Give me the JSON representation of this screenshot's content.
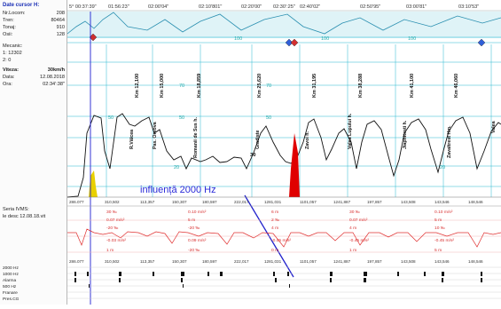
{
  "header": {
    "title": "Date cursor H:",
    "times": [
      "5° 00:37:39\"",
      "01:56:23\"",
      "02:00'04\"",
      "02:10'801\"",
      "02:20'00\"",
      "02:30':25\"",
      "02:40'02\"",
      "02:50'95\"",
      "03:00'81\"",
      "03:10'53\""
    ]
  },
  "train_info": {
    "rows": [
      {
        "label": "Nr.Locom:",
        "value": "208"
      },
      {
        "label": "Tren:",
        "value": "80464"
      },
      {
        "label": "Tonaj:",
        "value": "910"
      },
      {
        "label": "Osii:",
        "value": "128"
      },
      {
        "label": "Mecanic:",
        "value": ""
      },
      {
        "label": "1: 12302",
        "value": ""
      },
      {
        "label": "2: 0",
        "value": ""
      },
      {
        "label": "Viteza:",
        "value": "30km/h"
      },
      {
        "label": "Data:",
        "value": "12.08.2018"
      },
      {
        "label": "Ora:",
        "value": "02:34':38\""
      }
    ]
  },
  "top_scale": [
    "100",
    "100",
    "100"
  ],
  "speed_scale": [
    "100",
    "90",
    "80",
    "70",
    "60",
    "50",
    "40",
    "30",
    "20",
    "10"
  ],
  "kilometers": [
    "Km 12,100",
    "Km 15,000",
    "Km 18,859",
    "Km 25,620",
    "Km 31,195",
    "Km 38,288",
    "Km 41,100",
    "Km 46,060"
  ],
  "stations": [
    "R.Vâlcea",
    "Pas. Orsova",
    "Romanii de Sus h.",
    "Gradiste",
    "Zavoi h.",
    "Valea Lupului h.",
    "Jiaphitesti h.",
    "Zavaltrest Hm.",
    "Valea"
  ],
  "distance_axis": [
    "286.077",
    "310,502",
    "113,357",
    "150,307",
    "180,597",
    "222,017",
    "1281,031",
    "1101,057",
    "1241,887",
    "197,857",
    "143,508",
    "143,546",
    "148,546"
  ],
  "annotation": {
    "text": "influență 2000 Hz",
    "current_speed": "30"
  },
  "signal_panel": {
    "label": "Seria IVMS:",
    "date_label": "le desc 12.08.18.vit",
    "col1": [
      "30 ‰",
      "0.07 m/s²",
      "-20 ‰",
      "-0.03 m/s²",
      "1 m"
    ],
    "col2": [
      "0.10 m/s²",
      "5 m",
      "-20 ‰",
      "0.09 m/s²",
      "-20 ‰"
    ],
    "col3": [
      "6 m",
      "2 ‰",
      "4 m",
      "-0.05 m/s²",
      "0 m"
    ],
    "col4": [
      "30 ‰",
      "0.07 m/s²",
      "4 m",
      "-0.45 m/s²",
      "1 m"
    ],
    "col5": [
      "0.10 m/s²",
      "5 m",
      "10 ‰",
      "-0.45 m/s²",
      "5 m"
    ]
  },
  "event_channels": [
    "2000 Hz",
    "1000 Hz",
    "Alarma",
    "500 Hz",
    "Franare",
    "Pres.CG"
  ],
  "colors": {
    "speed": "#111111",
    "grid": "#28b8d0",
    "signal": "#e03030",
    "cursor": "#2020d0",
    "zone": "#e00000",
    "marker": "#e8d000"
  }
}
